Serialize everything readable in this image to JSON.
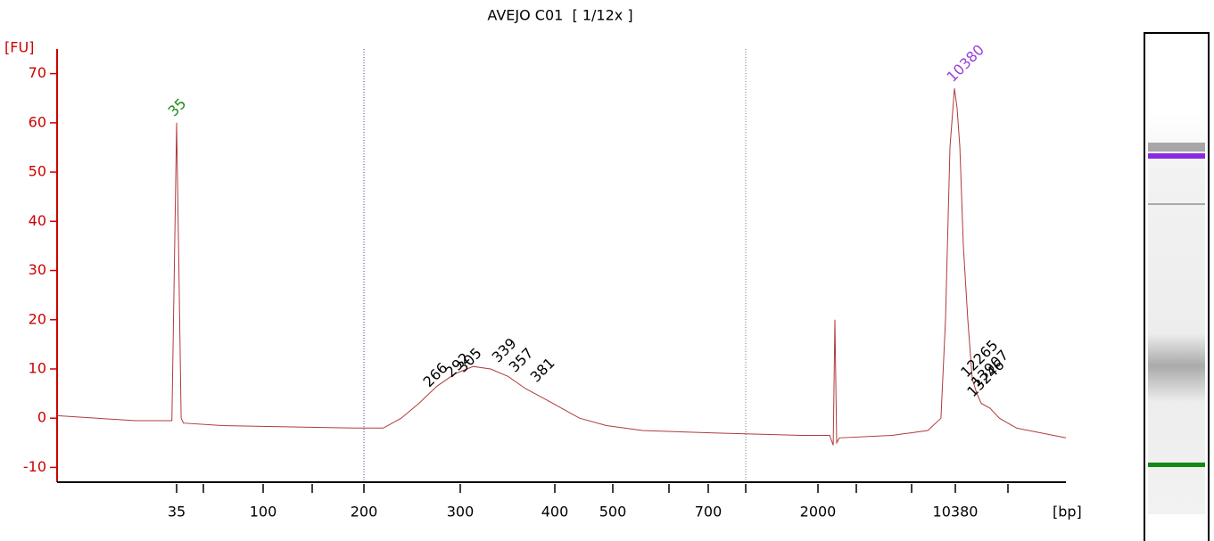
{
  "chart_data": {
    "type": "line",
    "title": "AVEJO C01  [ 1/12x ]",
    "y_label": "[FU]",
    "x_label": "[bp]",
    "color": "#b03a3a",
    "x": [
      8,
      21,
      32,
      33,
      34,
      35,
      36,
      37,
      38,
      61,
      190,
      217,
      234,
      252,
      272,
      293,
      312,
      329,
      347,
      366,
      387,
      411,
      440,
      488,
      555,
      736,
      1729,
      2300,
      2400,
      2451,
      2504,
      2585,
      4864,
      7465,
      8740,
      9230,
      9740,
      10270,
      10605,
      10960,
      11430,
      12060,
      12730,
      13440,
      14190,
      15800,
      17630,
      21690,
      39290
    ],
    "values": [
      0.5,
      -0.5,
      -0.5,
      -0.5,
      30,
      60,
      30,
      0,
      -1,
      -1.5,
      -2,
      -2,
      0,
      3,
      6.5,
      9,
      10.5,
      10,
      8.5,
      6,
      4,
      2,
      0,
      -1.5,
      -2.5,
      -3,
      -3.5,
      -3.5,
      -5.5,
      20,
      -5,
      -4,
      -3.5,
      -2.5,
      0,
      20,
      55,
      67,
      63,
      55,
      35,
      20,
      8,
      5,
      3,
      2,
      0,
      -2,
      -4
    ],
    "xlim": [
      8,
      39290
    ],
    "ylim": [
      -13,
      75
    ],
    "yticks": [
      -10,
      0,
      10,
      20,
      30,
      40,
      50,
      60,
      70
    ],
    "xticks": [
      35,
      100,
      200,
      300,
      400,
      500,
      700,
      2000,
      10380
    ],
    "peaks": [
      {
        "label": "35",
        "x": 35,
        "y": 61,
        "color": "#1a8a1a"
      },
      {
        "label": "266",
        "x": 266,
        "y": 6,
        "color": "#000000"
      },
      {
        "label": "292",
        "x": 292,
        "y": 8,
        "color": "#000000"
      },
      {
        "label": "305",
        "x": 305,
        "y": 9,
        "color": "#000000"
      },
      {
        "label": "339",
        "x": 339,
        "y": 11,
        "color": "#000000"
      },
      {
        "label": "357",
        "x": 357,
        "y": 9,
        "color": "#000000"
      },
      {
        "label": "381",
        "x": 381,
        "y": 7,
        "color": "#000000"
      },
      {
        "label": "10380",
        "x": 10380,
        "y": 68,
        "color": "#9b3fd6"
      },
      {
        "label": "12265",
        "x": 12265,
        "y": 8,
        "color": "#000000"
      },
      {
        "label": "13907",
        "x": 13907,
        "y": 6,
        "color": "#000000"
      },
      {
        "label": "13246",
        "x": 13246,
        "y": 4,
        "color": "#000000"
      }
    ]
  }
}
